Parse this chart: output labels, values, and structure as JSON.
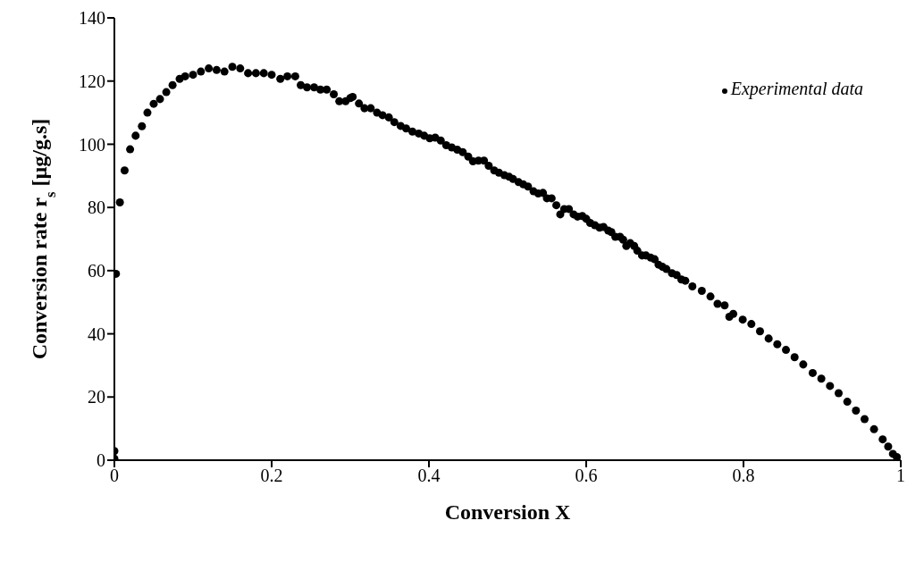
{
  "chart_data": {
    "type": "scatter",
    "xlabel": "Conversion X",
    "ylabel": "Conversion rate r$_{s}$  [µg/g.s]",
    "xlim": [
      0,
      1
    ],
    "xticks": [
      0,
      0.2,
      0.4,
      0.6,
      0.8,
      1
    ],
    "ylim": [
      0,
      140
    ],
    "yticks": [
      0,
      20,
      40,
      60,
      80,
      100,
      120,
      140
    ],
    "grid": false,
    "legend": "top right",
    "marker": "circle",
    "series": [
      {
        "name": "Experimental data",
        "color": "#000000",
        "x": [
          0,
          0,
          0.002,
          0.007,
          0.013,
          0.02,
          0.027,
          0.035,
          0.042,
          0.05,
          0.058,
          0.066,
          0.074,
          0.083,
          0.09,
          0.1,
          0.11,
          0.12,
          0.13,
          0.14,
          0.15,
          0.16,
          0.17,
          0.18,
          0.19,
          0.2,
          0.211,
          0.22,
          0.23,
          0.237,
          0.245,
          0.254,
          0.262,
          0.27,
          0.279,
          0.286,
          0.294,
          0.3,
          0.303,
          0.311,
          0.318,
          0.326,
          0.334,
          0.341,
          0.349,
          0.356,
          0.364,
          0.371,
          0.379,
          0.387,
          0.394,
          0.401,
          0.408,
          0.415,
          0.422,
          0.429,
          0.436,
          0.443,
          0.45,
          0.456,
          0.463,
          0.47,
          0.476,
          0.483,
          0.489,
          0.496,
          0.502,
          0.507,
          0.514,
          0.52,
          0.526,
          0.533,
          0.539,
          0.545,
          0.55,
          0.556,
          0.562,
          0.567,
          0.572,
          0.578,
          0.584,
          0.589,
          0.595,
          0.6,
          0.605,
          0.611,
          0.617,
          0.622,
          0.628,
          0.632,
          0.637,
          0.643,
          0.647,
          0.651,
          0.656,
          0.661,
          0.665,
          0.671,
          0.676,
          0.682,
          0.687,
          0.692,
          0.697,
          0.702,
          0.709,
          0.715,
          0.721,
          0.726,
          0.735,
          0.747,
          0.758,
          0.767,
          0.776,
          0.782,
          0.787,
          0.799,
          0.81,
          0.821,
          0.832,
          0.843,
          0.854,
          0.865,
          0.876,
          0.888,
          0.899,
          0.91,
          0.921,
          0.932,
          0.943,
          0.954,
          0.966,
          0.977,
          0.984,
          0.99,
          0.995
        ],
        "values": [
          0.5,
          2.9,
          59,
          81.6,
          91.7,
          98.4,
          102.7,
          105.7,
          110,
          112.8,
          114.3,
          116.5,
          118.7,
          120.7,
          121.5,
          122,
          123,
          124,
          123.5,
          123,
          124.5,
          124,
          122.5,
          122.5,
          122.5,
          122,
          120.7,
          121.5,
          121.5,
          118.7,
          118,
          118,
          117.3,
          117.3,
          115.8,
          113.6,
          113.6,
          114.6,
          115,
          112.9,
          111.4,
          111.4,
          110,
          109.2,
          108.5,
          107,
          105.8,
          105,
          104,
          103.4,
          102.7,
          101.9,
          102.1,
          101.2,
          99.7,
          99,
          98.3,
          97.5,
          96.1,
          94.6,
          94.8,
          94.8,
          93.2,
          91.7,
          91,
          90.2,
          89.7,
          89,
          88,
          87.3,
          86.6,
          85.1,
          84.4,
          84.6,
          82.9,
          82.9,
          80.7,
          77.8,
          79.5,
          79.5,
          77.8,
          77.1,
          77.3,
          76.4,
          75.1,
          74.4,
          73.6,
          73.8,
          72.7,
          72.2,
          70.7,
          70.7,
          69.8,
          67.8,
          68.7,
          67.8,
          66.3,
          64.8,
          64.8,
          64.1,
          63.6,
          61.9,
          61.2,
          60.5,
          59.2,
          58.6,
          57.2,
          56.8,
          55,
          53.6,
          51.8,
          49.5,
          49,
          45.4,
          46.3,
          44.5,
          43.1,
          40.8,
          38.5,
          36.7,
          34.9,
          32.6,
          30.3,
          27.6,
          25.8,
          23.5,
          21.2,
          18.5,
          15.7,
          13,
          9.8,
          6.6,
          4.3,
          2,
          1
        ]
      }
    ]
  }
}
